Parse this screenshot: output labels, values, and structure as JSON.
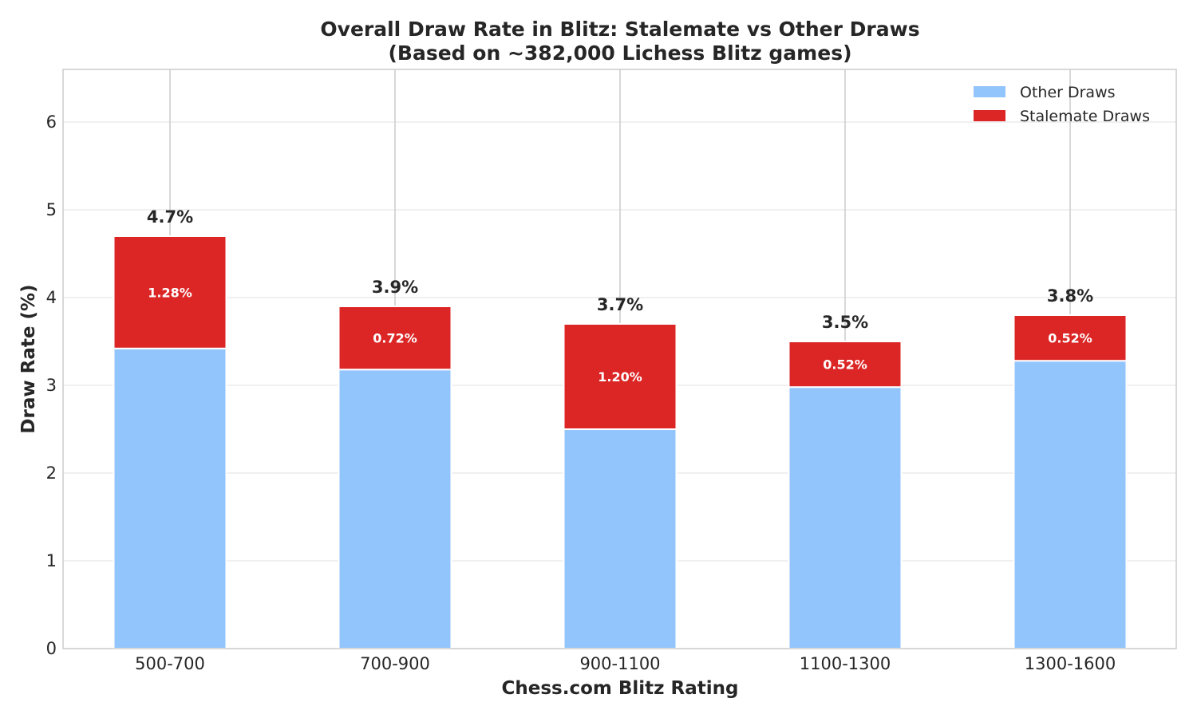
{
  "chart_data": {
    "type": "bar",
    "stacked": true,
    "title": "Overall Draw Rate in Blitz: Stalemate vs Other Draws",
    "subtitle": "(Based on ~382,000 Lichess Blitz games)",
    "xlabel": "Chess.com Blitz Rating",
    "ylabel": "Draw Rate (%)",
    "categories": [
      "500-700",
      "700-900",
      "900-1100",
      "1100-1300",
      "1300-1600"
    ],
    "series": [
      {
        "name": "Other Draws",
        "color": "#93c5fd",
        "values": [
          3.42,
          3.18,
          2.5,
          2.98,
          3.28
        ]
      },
      {
        "name": "Stalemate Draws",
        "color": "#dc2626",
        "values": [
          1.28,
          0.72,
          1.2,
          0.52,
          0.52
        ]
      }
    ],
    "segment_labels": [
      "1.28%",
      "0.72%",
      "1.20%",
      "0.52%",
      "0.52%"
    ],
    "total_labels": [
      "4.7%",
      "3.9%",
      "3.7%",
      "3.5%",
      "3.8%"
    ],
    "ylim": [
      0,
      6.6
    ],
    "yticks": [
      0,
      1,
      2,
      3,
      4,
      5,
      6
    ],
    "grid": true,
    "legend_position": "top-right"
  }
}
